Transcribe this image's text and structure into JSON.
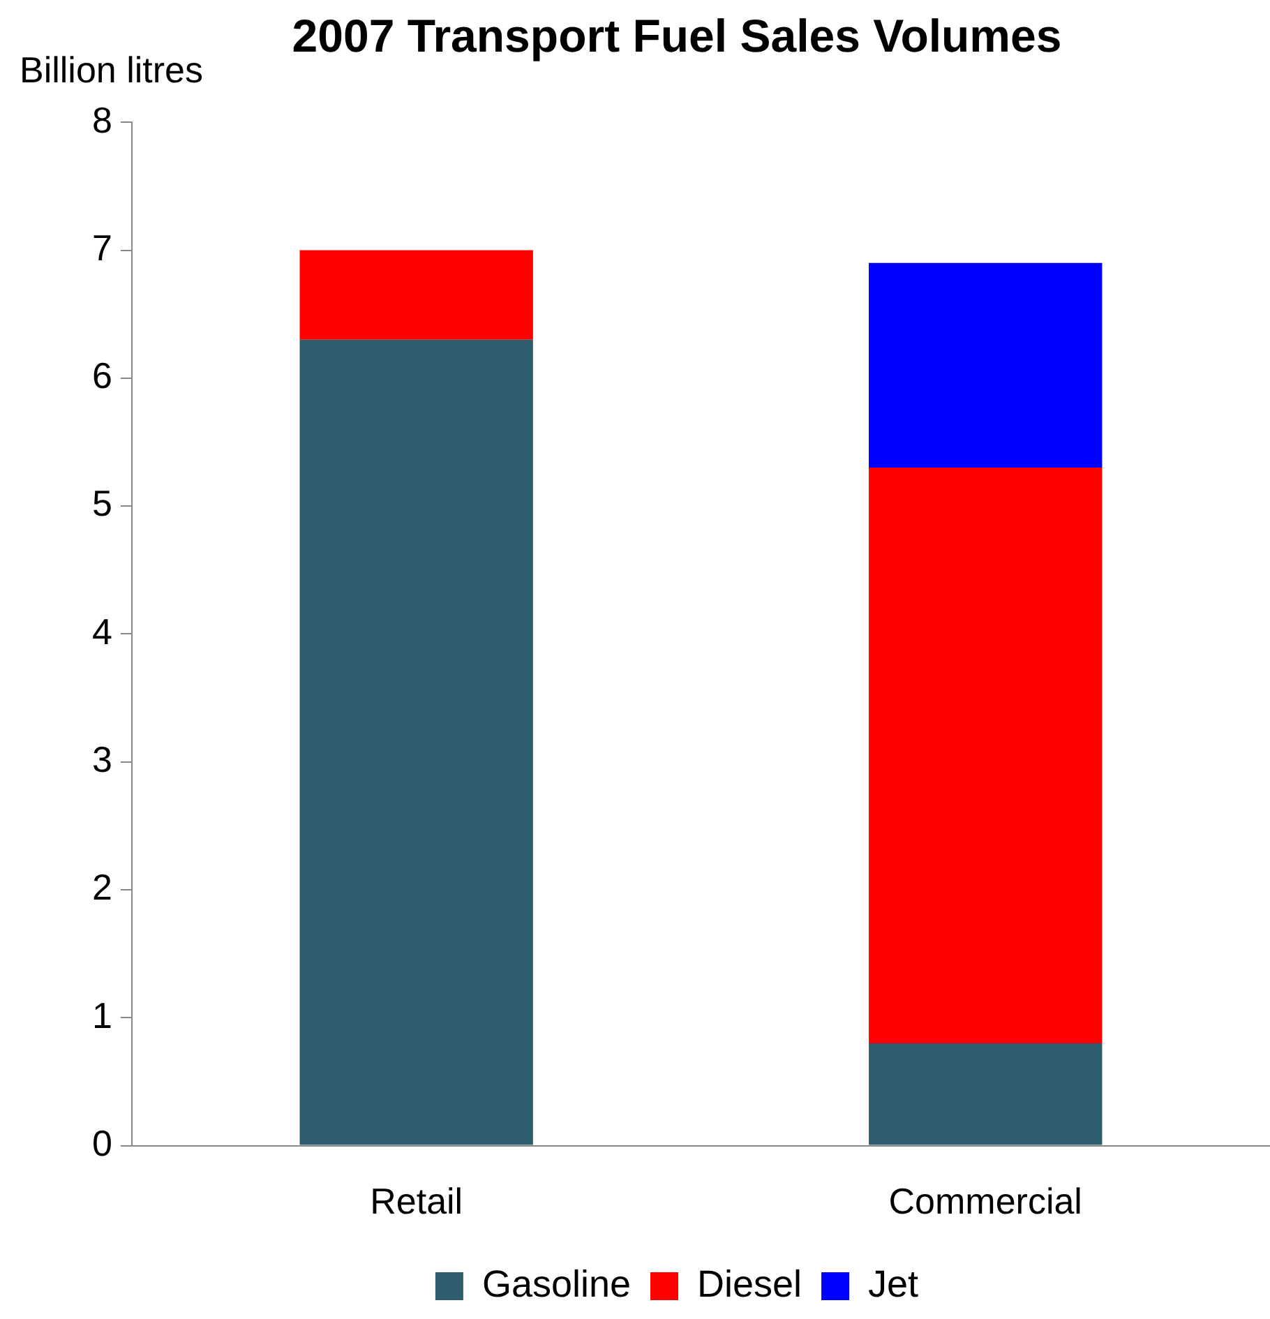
{
  "chart_data": {
    "type": "bar",
    "title": "2007 Transport Fuel Sales Volumes",
    "ylabel": "Billion litres",
    "categories": [
      "Retail",
      "Commercial"
    ],
    "stacked": true,
    "series": [
      {
        "name": "Gasoline",
        "color": "#305d6e",
        "values": [
          6.3,
          0.8
        ]
      },
      {
        "name": "Diesel",
        "color": "#ff0000",
        "values": [
          0.7,
          4.5
        ]
      },
      {
        "name": "Jet",
        "color": "#0000ff",
        "values": [
          null,
          1.6
        ]
      }
    ],
    "ylim": [
      0,
      8
    ],
    "yticks": [
      0,
      1,
      2,
      3,
      4,
      5,
      6,
      7,
      8
    ],
    "grid": false,
    "legend": "bottom"
  }
}
